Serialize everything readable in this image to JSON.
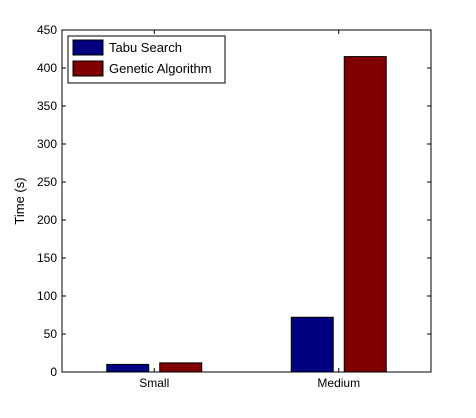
{
  "chart_data": {
    "type": "bar",
    "categories": [
      "Small",
      "Medium"
    ],
    "series": [
      {
        "name": "Tabu Search",
        "values": [
          10,
          72
        ],
        "color": "#000080"
      },
      {
        "name": "Genetic Algorithm",
        "values": [
          12,
          415
        ],
        "color": "#800000"
      }
    ],
    "title": "",
    "xlabel": "",
    "ylabel": "Time  (s)",
    "ylim": [
      0,
      450
    ],
    "yticks": [
      0,
      50,
      100,
      150,
      200,
      250,
      300,
      350,
      400,
      450
    ],
    "grid": false,
    "legend": "top-left"
  }
}
